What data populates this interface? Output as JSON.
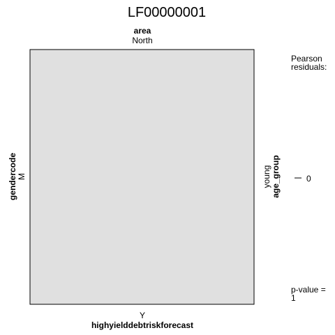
{
  "chart_data": {
    "type": "mosaic",
    "title": "LF00000001",
    "top_variable": {
      "name": "area",
      "level": "North"
    },
    "left_variable": {
      "name": "gendercode",
      "level": "M"
    },
    "right_variable": {
      "name": "age_group",
      "level": "young"
    },
    "bottom_variable": {
      "name": "highyielddebtriskforecast",
      "level": "Y"
    },
    "cells": [
      {
        "area": "North",
        "gendercode": "M",
        "age_group": "young",
        "highyielddebtriskforecast": "Y",
        "proportion": 1.0,
        "pearson_residual": 0
      }
    ],
    "legend": {
      "title_line1": "Pearson",
      "title_line2": "residuals:",
      "tick_label": "0",
      "pvalue_line1": "p-value =",
      "pvalue_line2": "1"
    },
    "colors": {
      "cell_fill": "#e0e0e0",
      "cell_stroke": "#000000"
    }
  }
}
